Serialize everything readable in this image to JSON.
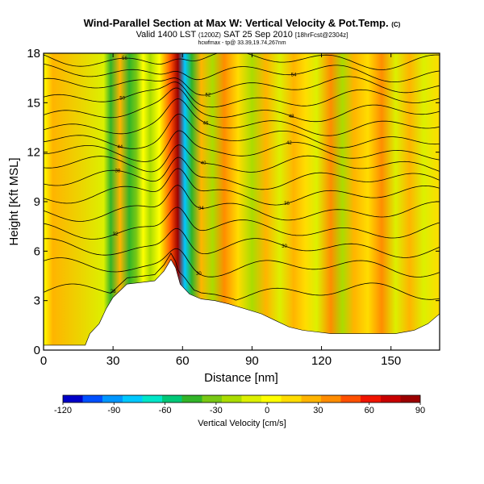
{
  "chart_data": {
    "type": "heatmap",
    "title": "Wind-Parallel Section at Max W: Vertical Velocity & Pot.Temp.",
    "title_units": "(C)",
    "subtitle": "Valid 1400 LST",
    "subtitle_utc": "(1200Z)",
    "subtitle_date": "SAT 25 Sep 2010",
    "subtitle_forecast": "[18hrFcst@2304z]",
    "file_line": "hcwfmax - tp@ 33.39,19.74,267nm",
    "xlabel": "Distance [nm]",
    "ylabel": "Height [Kft MSL]",
    "xlim": [
      0,
      171
    ],
    "ylim": [
      0,
      18
    ],
    "xticks": [
      "0",
      "30",
      "60",
      "90",
      "120",
      "150"
    ],
    "xtick_values": [
      0,
      30,
      60,
      90,
      120,
      150
    ],
    "yticks": [
      "0",
      "3",
      "6",
      "9",
      "12",
      "15",
      "18"
    ],
    "ytick_values": [
      0,
      3,
      6,
      9,
      12,
      15,
      18
    ],
    "colorbar": {
      "title": "Vertical Velocity [cm/s]",
      "ticks": [
        "-120",
        "-90",
        "-60",
        "-30",
        "0",
        "30",
        "60",
        "90"
      ],
      "tick_values": [
        -120,
        -90,
        -60,
        -30,
        0,
        30,
        60,
        90
      ],
      "range": [
        -120,
        90
      ],
      "colors": [
        "#0000c8",
        "#0050ff",
        "#0096ff",
        "#00c8ff",
        "#00e6c8",
        "#00c878",
        "#32b428",
        "#78c814",
        "#aadc00",
        "#dcf000",
        "#ffff00",
        "#ffdc00",
        "#ffb400",
        "#ff8c00",
        "#ff5000",
        "#f01400",
        "#c80000",
        "#9b0000"
      ]
    },
    "vertical_velocity_bands": [
      {
        "x": 0,
        "w": 4
      },
      {
        "x": 4,
        "w": 22
      },
      {
        "x": 26,
        "w": -10
      },
      {
        "x": 29,
        "w": -45
      },
      {
        "x": 33,
        "w": 25
      },
      {
        "x": 37,
        "w": -40
      },
      {
        "x": 40,
        "w": -30
      },
      {
        "x": 43,
        "w": 5
      },
      {
        "x": 46,
        "w": -20
      },
      {
        "x": 50,
        "w": 8
      },
      {
        "x": 55,
        "w": 45
      },
      {
        "x": 58,
        "w": 88
      },
      {
        "x": 61,
        "w": -75
      },
      {
        "x": 64,
        "w": -50
      },
      {
        "x": 68,
        "w": 20
      },
      {
        "x": 73,
        "w": -20
      },
      {
        "x": 78,
        "w": 35
      },
      {
        "x": 84,
        "w": 10
      },
      {
        "x": 90,
        "w": -25
      },
      {
        "x": 96,
        "w": 20
      },
      {
        "x": 102,
        "w": -15
      },
      {
        "x": 108,
        "w": 30
      },
      {
        "x": 113,
        "w": 15
      },
      {
        "x": 118,
        "w": -10
      },
      {
        "x": 124,
        "w": 40
      },
      {
        "x": 129,
        "w": -20
      },
      {
        "x": 134,
        "w": 25
      },
      {
        "x": 140,
        "w": 10
      },
      {
        "x": 146,
        "w": 35
      },
      {
        "x": 152,
        "w": -15
      },
      {
        "x": 158,
        "w": 20
      },
      {
        "x": 164,
        "w": -10
      },
      {
        "x": 171,
        "w": 15
      }
    ],
    "terrain_kft": [
      {
        "x": 0,
        "z": 0.3
      },
      {
        "x": 18,
        "z": 0.3
      },
      {
        "x": 20,
        "z": 1.0
      },
      {
        "x": 24,
        "z": 1.6
      },
      {
        "x": 27,
        "z": 2.5
      },
      {
        "x": 30,
        "z": 3.2
      },
      {
        "x": 33,
        "z": 3.6
      },
      {
        "x": 36,
        "z": 4.0
      },
      {
        "x": 42,
        "z": 4.1
      },
      {
        "x": 48,
        "z": 4.2
      },
      {
        "x": 52,
        "z": 4.8
      },
      {
        "x": 55,
        "z": 5.5
      },
      {
        "x": 57,
        "z": 5.0
      },
      {
        "x": 59,
        "z": 4.0
      },
      {
        "x": 63,
        "z": 3.4
      },
      {
        "x": 68,
        "z": 3.1
      },
      {
        "x": 74,
        "z": 3.0
      },
      {
        "x": 80,
        "z": 2.8
      },
      {
        "x": 87,
        "z": 2.5
      },
      {
        "x": 94,
        "z": 2.2
      },
      {
        "x": 100,
        "z": 1.8
      },
      {
        "x": 106,
        "z": 1.4
      },
      {
        "x": 112,
        "z": 1.2
      },
      {
        "x": 118,
        "z": 1.1
      },
      {
        "x": 124,
        "z": 1.0
      },
      {
        "x": 130,
        "z": 1.0
      },
      {
        "x": 140,
        "z": 1.0
      },
      {
        "x": 152,
        "z": 1.0
      },
      {
        "x": 160,
        "z": 1.2
      },
      {
        "x": 166,
        "z": 1.6
      },
      {
        "x": 171,
        "z": 2.2
      }
    ],
    "theta_contours_c": [
      {
        "base": 3.5,
        "label": "28"
      },
      {
        "base": 5.0,
        "label": "30"
      },
      {
        "base": 6.2,
        "label": "30"
      },
      {
        "base": 7.3,
        "label": "32"
      },
      {
        "base": 8.4,
        "label": "34"
      },
      {
        "base": 9.4,
        "label": "36"
      },
      {
        "base": 10.3,
        "label": "38"
      },
      {
        "base": 11.2,
        "label": "40"
      },
      {
        "base": 12.0,
        "label": "42"
      },
      {
        "base": 12.8,
        "label": "44"
      },
      {
        "base": 13.6,
        "label": "46"
      },
      {
        "base": 14.4,
        "label": "48"
      },
      {
        "base": 15.2,
        "label": "50"
      },
      {
        "base": 16.0,
        "label": "52"
      },
      {
        "base": 16.8,
        "label": "54"
      },
      {
        "base": 17.6,
        "label": "56"
      }
    ]
  }
}
